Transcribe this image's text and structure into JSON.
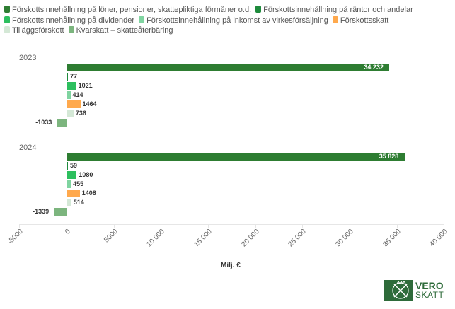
{
  "chart_data": {
    "type": "bar",
    "orientation": "horizontal",
    "title": "",
    "xlabel": "Milj. €",
    "ylabel": "",
    "xlim": [
      -5000,
      40000
    ],
    "x_ticks": [
      "-5000",
      "0",
      "5000",
      "10 000",
      "15 000",
      "20 000",
      "25 000",
      "30 000",
      "35 000",
      "40 000"
    ],
    "categories": [
      "2023",
      "2024"
    ],
    "grid": false,
    "legend_position": "top",
    "series": [
      {
        "name": "Förskottsinnehållning på löner, pensioner, skattepliktiga förmåner o.d.",
        "color": "#2e7d32",
        "values": [
          34232,
          35828
        ],
        "labels": [
          "34 232",
          "35 828"
        ]
      },
      {
        "name": "Förskottsinnehållning på räntor och andelar",
        "color": "#1e8a3c",
        "values": [
          77,
          59
        ],
        "labels": [
          "77",
          "59"
        ]
      },
      {
        "name": "Förskottsinnehållning på dividender",
        "color": "#2dbf5e",
        "values": [
          1021,
          1080
        ],
        "labels": [
          "1021",
          "1080"
        ]
      },
      {
        "name": "Förskottsinnehållning på inkomst av virkesförsäljning",
        "color": "#7fd4a0",
        "values": [
          414,
          455
        ],
        "labels": [
          "414",
          "455"
        ]
      },
      {
        "name": "Förskottsskatt",
        "color": "#ffa94d",
        "values": [
          1464,
          1408
        ],
        "labels": [
          "1464",
          "1408"
        ]
      },
      {
        "name": "Tilläggsförskott",
        "color": "#d4e8d6",
        "values": [
          736,
          514
        ],
        "labels": [
          "736",
          "514"
        ]
      },
      {
        "name": "Kvarskatt – skatteåterbäring",
        "color": "#7cb57e",
        "values": [
          -1033,
          -1339
        ],
        "labels": [
          "-1033",
          "-1339"
        ]
      }
    ]
  },
  "legend": {
    "rows": [
      [
        0,
        1
      ],
      [
        2,
        3,
        4
      ],
      [
        5,
        6
      ]
    ]
  },
  "logo": {
    "line1": "VERO",
    "line2": "SKATT"
  }
}
